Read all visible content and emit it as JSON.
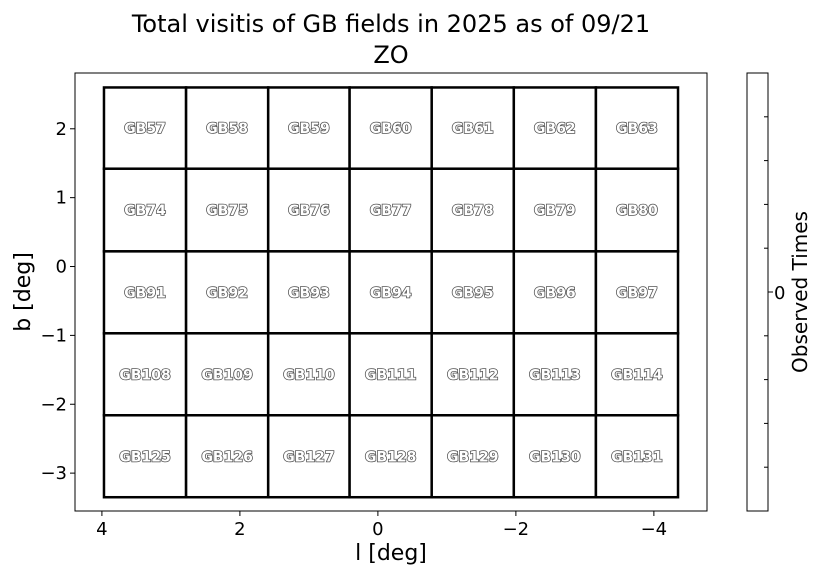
{
  "chart_data": {
    "type": "heatmap",
    "title": "Total visitis of GB fields in 2025 as of 09/21",
    "subtitle": "ZO",
    "xlabel": "l [deg]",
    "ylabel": "b [deg]",
    "xlim": [
      4.39,
      -4.77
    ],
    "ylim": [
      -3.55,
      2.81
    ],
    "xticks": [
      4,
      2,
      0,
      -2,
      -4
    ],
    "xtick_labels": [
      "4",
      "2",
      "0",
      "−2",
      "−4"
    ],
    "yticks": [
      2,
      1,
      0,
      -1,
      -2,
      -3
    ],
    "ytick_labels": [
      "2",
      "1",
      "0",
      "−1",
      "−2",
      "−3"
    ],
    "grid": false,
    "l_edges": [
      3.97,
      2.78,
      1.59,
      0.41,
      -0.78,
      -1.97,
      -3.16,
      -4.35
    ],
    "b_edges": [
      2.6,
      1.42,
      0.22,
      -0.97,
      -2.16,
      -3.35
    ],
    "fields": [
      [
        "GB57",
        "GB58",
        "GB59",
        "GB60",
        "GB61",
        "GB62",
        "GB63"
      ],
      [
        "GB74",
        "GB75",
        "GB76",
        "GB77",
        "GB78",
        "GB79",
        "GB80"
      ],
      [
        "GB91",
        "GB92",
        "GB93",
        "GB94",
        "GB95",
        "GB96",
        "GB97"
      ],
      [
        "GB108",
        "GB109",
        "GB110",
        "GB111",
        "GB112",
        "GB113",
        "GB114"
      ],
      [
        "GB125",
        "GB126",
        "GB127",
        "GB128",
        "GB129",
        "GB130",
        "GB131"
      ]
    ],
    "values_all": 0,
    "colorbar": {
      "label": "Observed Times",
      "tick_labels": [
        "0"
      ],
      "color": "#ffffff"
    }
  }
}
